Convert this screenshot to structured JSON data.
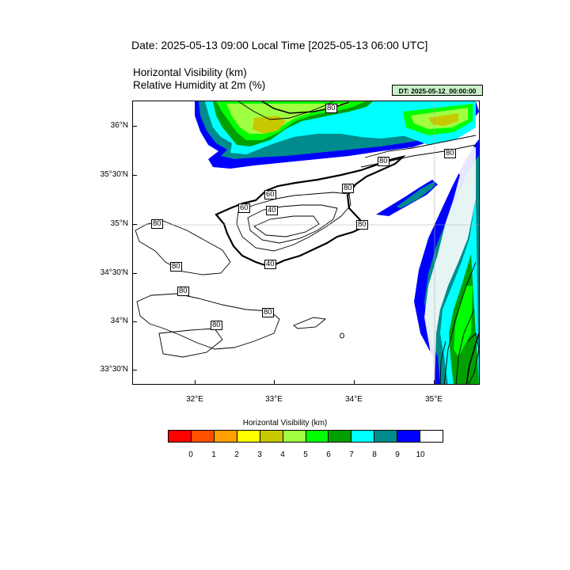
{
  "header": {
    "date_line": "Date: 2025-05-13  09:00 Local Time [2025-05-13  06:00 UTC]",
    "var_line1": "Horizontal Visibility   (km)",
    "var_line2": "Relative Humidity at 2m   (%)",
    "dt_badge": "DT: 2025-05-12_00:00:00",
    "dt_badge_color": "#c8f0c8"
  },
  "map": {
    "lat_labels": [
      "36°N",
      "35°30'N",
      "35°N",
      "34°30'N",
      "34°N",
      "33°30'N"
    ],
    "lon_labels": [
      "32°E",
      "33°E",
      "34°E",
      "35°E"
    ],
    "contour_labels": [
      "80",
      "80",
      "80",
      "60",
      "80",
      "60",
      "40",
      "80",
      "80",
      "80",
      "80",
      "80",
      "40",
      "80"
    ],
    "layers": [
      "visibility-fill",
      "humidity-contours",
      "coastlines"
    ]
  },
  "legend": {
    "title": "Horizontal Visibility  (km)",
    "ticks": [
      "0",
      "1",
      "2",
      "3",
      "4",
      "5",
      "6",
      "7",
      "8",
      "9",
      "10"
    ],
    "colors": [
      "#ff0000",
      "#ff5000",
      "#ffa000",
      "#ffff00",
      "#c8c800",
      "#a0ff40",
      "#00ff00",
      "#00a000",
      "#00ffff",
      "#008c8c",
      "#0000ff",
      "#ffffff"
    ]
  }
}
